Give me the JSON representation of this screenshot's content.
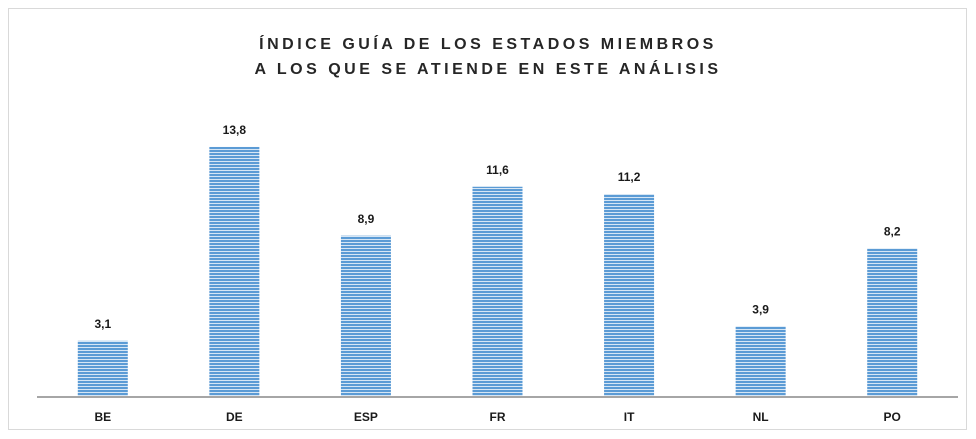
{
  "chart_data": {
    "type": "bar",
    "title_lines": [
      "ÍNDICE GUÍA DE LOS ESTADOS MIEMBROS",
      "A LOS QUE SE ATIENDE EN ESTE ANÁLISIS"
    ],
    "categories": [
      "BE",
      "DE",
      "ESP",
      "FR",
      "IT",
      "NL",
      "PO"
    ],
    "values": [
      3.1,
      13.8,
      8.9,
      11.6,
      11.2,
      3.9,
      8.2
    ],
    "value_labels": [
      "3,1",
      "13,8",
      "8,9",
      "11,6",
      "11,2",
      "3,9",
      "8,2"
    ],
    "color": "#5b9bd5",
    "ylim": [
      0,
      16
    ]
  }
}
